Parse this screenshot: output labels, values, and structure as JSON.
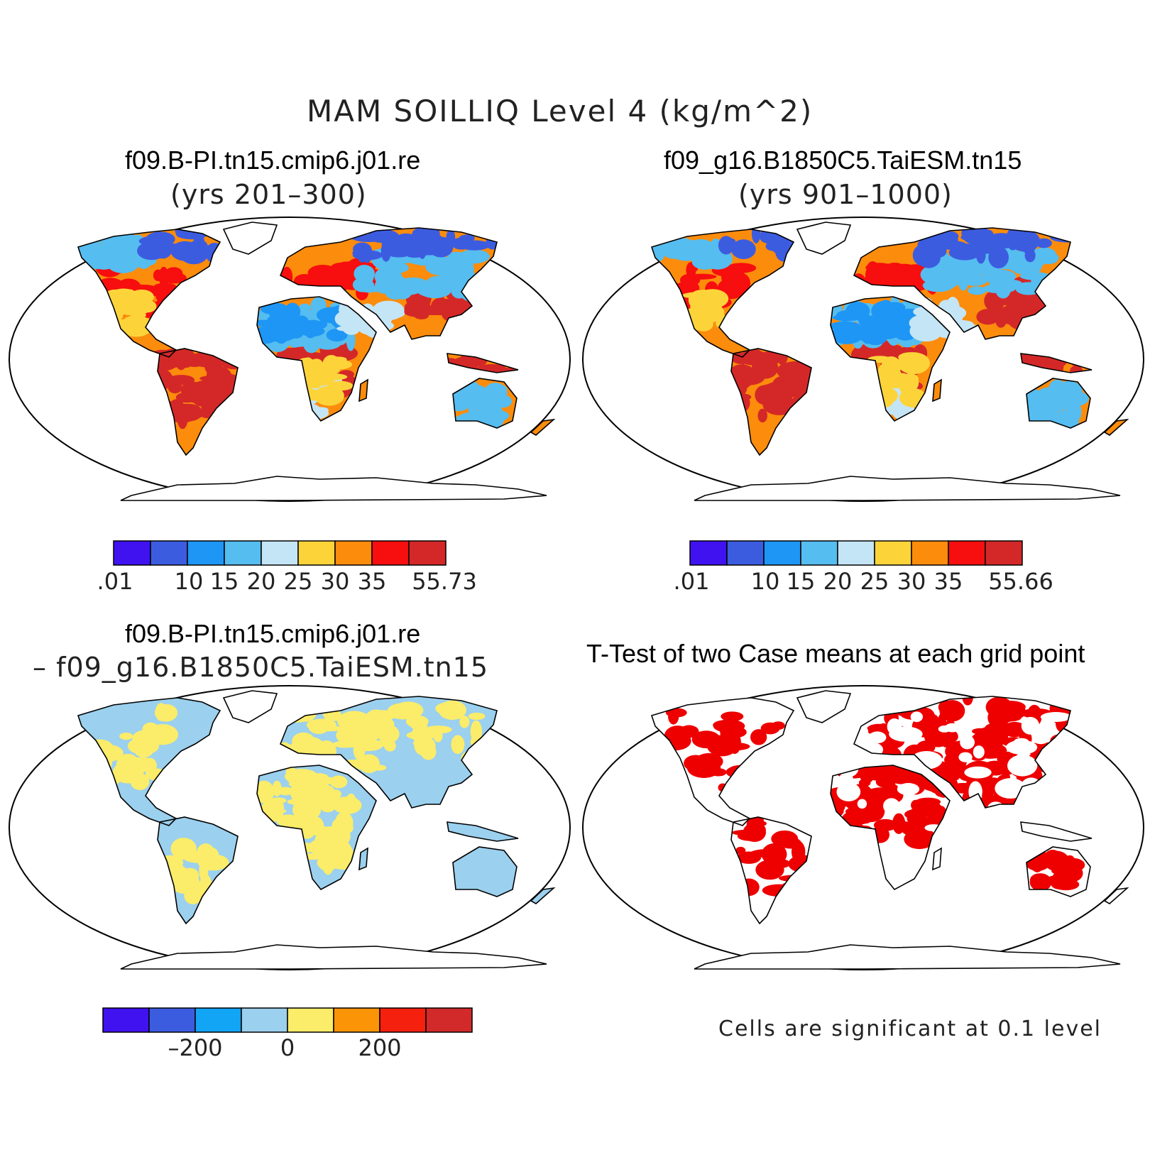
{
  "figure_title": "MAM SOILLIQ Level 4 (kg/m^2)",
  "panels": {
    "top_left": {
      "title": "f09.B-PI.tn15.cmip6.j01.re",
      "subtitle": "(yrs 201–300)"
    },
    "top_right": {
      "title": "f09_g16.B1850C5.TaiESM.tn15",
      "subtitle": "(yrs 901–1000)"
    },
    "bottom_left": {
      "title": "f09.B-PI.tn15.cmip6.j01.re",
      "subtitle": "– f09_g16.B1850C5.TaiESM.tn15"
    },
    "bottom_right": {
      "title": "T-Test of two Case means at each grid point",
      "note": "Cells are significant at 0.1 level"
    }
  },
  "colors": {
    "abs_scale": [
      "#4012f0",
      "#3c5ce0",
      "#1e96f5",
      "#55bdf0",
      "#c4e5f6",
      "#fcd43a",
      "#fc8c0c",
      "#f70e0e",
      "#d42828"
    ],
    "diff_scale": [
      "#4012f0",
      "#3c5ce0",
      "#12a4f5",
      "#9bd0ee",
      "#fbec6a",
      "#fc9408",
      "#f5200e",
      "#d22a2a"
    ],
    "significant": "#ee0000",
    "land_outline": "#000000"
  },
  "colorbars": {
    "top_left": {
      "ticks": [
        ".01",
        "10",
        "15",
        "20",
        "25",
        "30",
        "35",
        "55.73"
      ]
    },
    "top_right": {
      "ticks": [
        ".01",
        "10",
        "15",
        "20",
        "25",
        "30",
        "35",
        "55.66"
      ]
    },
    "bottom_left": {
      "ticks": [
        "–200",
        "0",
        "200"
      ]
    }
  },
  "chart_data": [
    {
      "type": "heatmap",
      "panel": "top_left",
      "title": "f09.B-PI.tn15.cmip6.j01.re",
      "subtitle": "(yrs 201–300)",
      "projection": "robinson world map",
      "colorbar_levels": [
        0.01,
        10,
        15,
        20,
        25,
        30,
        35,
        55.73
      ],
      "colorbar_bins": 9
    },
    {
      "type": "heatmap",
      "panel": "top_right",
      "title": "f09_g16.B1850C5.TaiESM.tn15",
      "subtitle": "(yrs 901–1000)",
      "projection": "robinson world map",
      "colorbar_levels": [
        0.01,
        10,
        15,
        20,
        25,
        30,
        35,
        55.66
      ],
      "colorbar_bins": 9
    },
    {
      "type": "heatmap",
      "panel": "bottom_left",
      "title": "f09.B-PI.tn15.cmip6.j01.re",
      "subtitle": "– f09_g16.B1850C5.TaiESM.tn15",
      "projection": "robinson world map",
      "colorbar_levels": [
        -200,
        0,
        200
      ],
      "colorbar_bins": 8
    },
    {
      "type": "heatmap",
      "panel": "bottom_right",
      "title": "T-Test of two Case means at each grid point",
      "note": "Cells are significant at 0.1 level",
      "projection": "robinson world map"
    }
  ]
}
